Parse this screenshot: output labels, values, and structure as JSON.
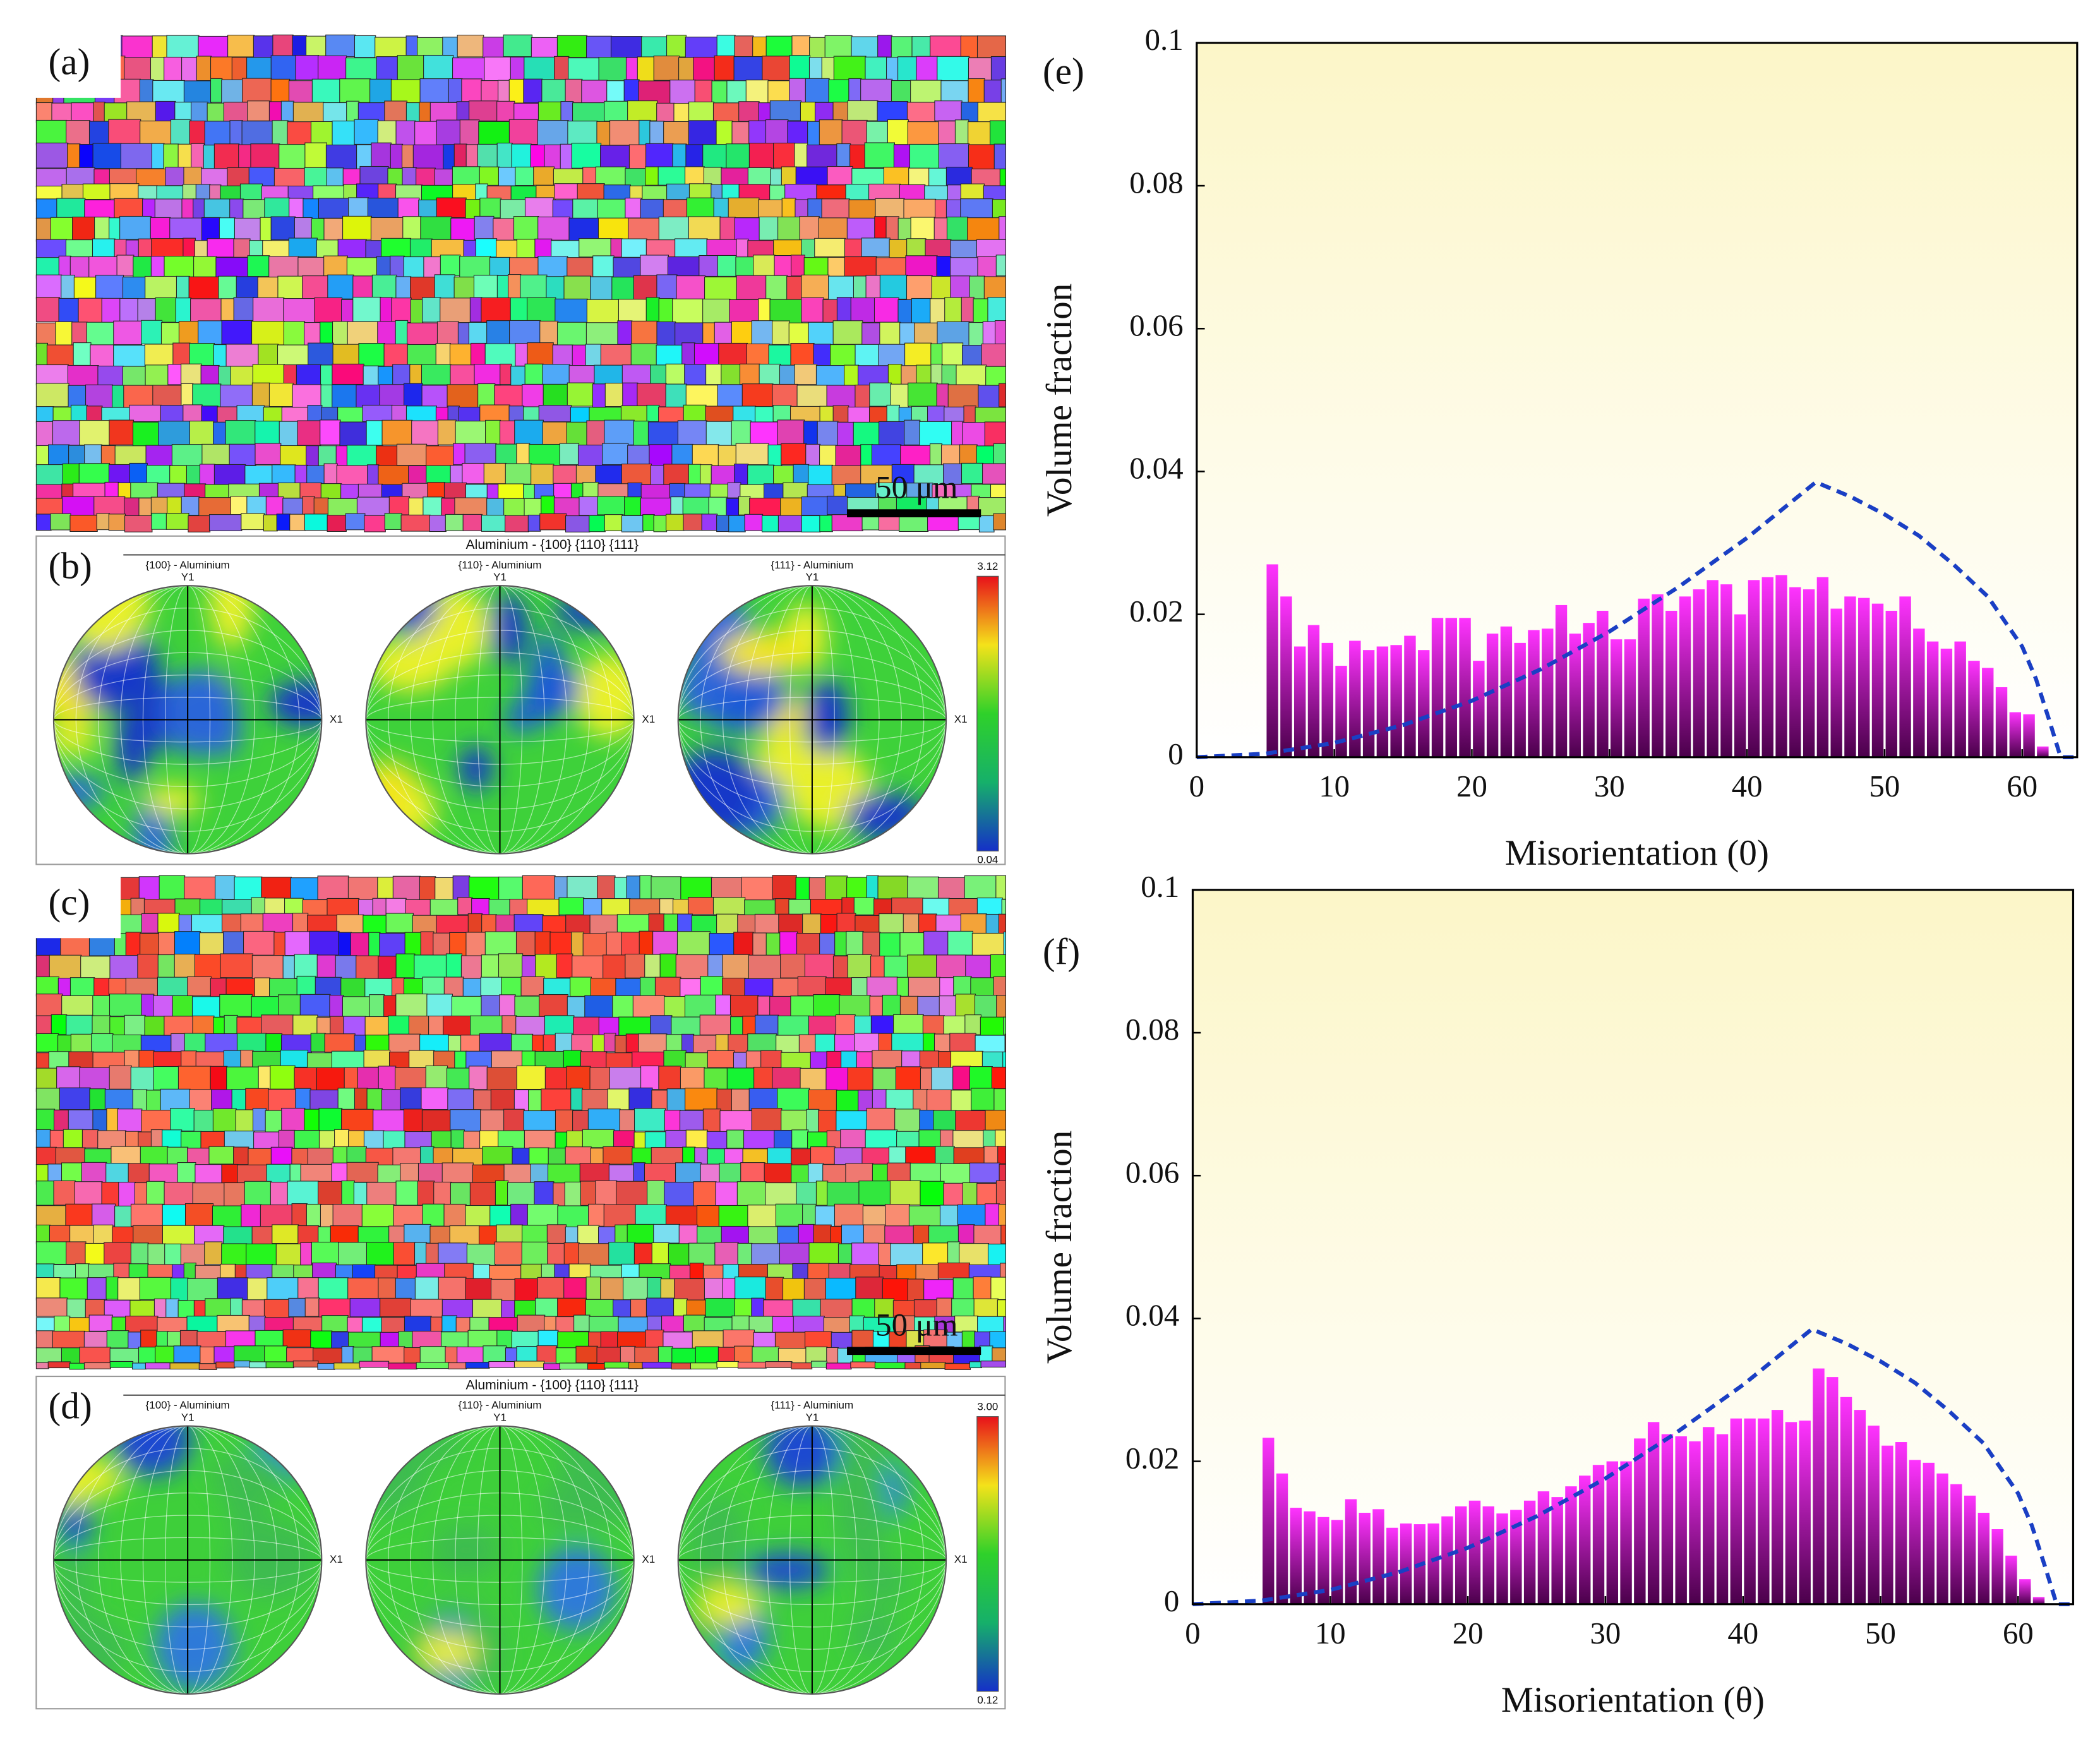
{
  "panels": {
    "a": {
      "label": "(a)",
      "scale_bar": "50 μm"
    },
    "b": {
      "label": "(b)",
      "title": "Aluminium - {100} {110} {111}",
      "figures": [
        "{100} - Aluminium",
        "{110} - Aluminium",
        "{111} - Aluminium"
      ],
      "y_axis": "Y1",
      "x_axis": "X1",
      "colorbar": [
        3.12,
        0.04
      ]
    },
    "c": {
      "label": "(c)",
      "scale_bar": "50 μm"
    },
    "d": {
      "label": "(d)",
      "title": "Aluminium - {100} {110} {111}",
      "figures": [
        "{100} - Aluminium",
        "{110} - Aluminium",
        "{111} - Aluminium"
      ],
      "y_axis": "Y1",
      "x_axis": "X1",
      "colorbar": [
        {
          "value": 3,
          "label": "3.00"
        },
        0.12
      ]
    }
  },
  "chart_data": [
    {
      "type": "histogram",
      "label": "(e)",
      "x_label": "Misorientation (0)",
      "y_label": "Volume fraction",
      "bins": [
        5,
        6,
        7,
        8,
        9,
        10,
        11,
        12,
        13,
        14,
        15,
        16,
        17,
        18,
        19,
        20,
        21,
        22,
        23,
        24,
        25,
        26,
        27,
        28,
        29,
        30,
        31,
        32,
        33,
        34,
        35,
        36,
        37,
        38,
        39,
        40,
        41,
        42,
        43,
        44,
        45,
        46,
        47,
        48,
        49,
        50,
        51,
        52,
        53,
        54,
        55,
        56,
        57,
        58,
        59,
        60,
        61,
        62
      ],
      "values": [
        0.027,
        0.0225,
        0.0155,
        0.0185,
        0.016,
        0.0128,
        0.0163,
        0.015,
        0.0155,
        0.0157,
        0.017,
        0.015,
        0.0195,
        0.0195,
        0.0195,
        0.0135,
        0.0173,
        0.0183,
        0.016,
        0.0178,
        0.018,
        0.0213,
        0.0173,
        0.0188,
        0.0205,
        0.0165,
        0.0165,
        0.0222,
        0.0228,
        0.0205,
        0.0225,
        0.0235,
        0.0248,
        0.0242,
        0.02,
        0.0248,
        0.0252,
        0.0255,
        0.0238,
        0.0235,
        0.0252,
        0.0208,
        0.0225,
        0.0223,
        0.0215,
        0.0205,
        0.0225,
        0.018,
        0.0162,
        0.0152,
        0.0162,
        0.0135,
        0.0125,
        0.0098,
        0.0063,
        0.006,
        0.0015
      ],
      "color": "#ff33ff",
      "curve": {
        "x": [
          0,
          5,
          10,
          15,
          20,
          25,
          30,
          35,
          40,
          45,
          47.5,
          50,
          52.5,
          55,
          57.5,
          60,
          61,
          62,
          62.8,
          64
        ],
        "values": [
          0,
          0.0005,
          0.002,
          0.0045,
          0.0079,
          0.0123,
          0.0176,
          0.0238,
          0.0307,
          0.0385,
          0.0365,
          0.034,
          0.031,
          0.027,
          0.0225,
          0.0155,
          0.011,
          0.005,
          0,
          0
        ],
        "color": "#1a3fc4"
      },
      "xlim": [
        0,
        64
      ],
      "xticks": [
        0,
        10,
        20,
        30,
        40,
        50,
        60
      ],
      "ylim": [
        0,
        0.1
      ],
      "yticks": [
        0,
        0.02,
        0.04,
        0.06,
        0.08,
        0.1
      ]
    },
    {
      "type": "histogram",
      "label": "(f)",
      "x_label": "Misorientation (θ)",
      "y_label": "Volume fraction",
      "bins": [
        5,
        6,
        7,
        8,
        9,
        10,
        11,
        12,
        13,
        14,
        15,
        16,
        17,
        18,
        19,
        20,
        21,
        22,
        23,
        24,
        25,
        26,
        27,
        28,
        29,
        30,
        31,
        32,
        33,
        34,
        35,
        36,
        37,
        38,
        39,
        40,
        41,
        42,
        43,
        44,
        45,
        46,
        47,
        48,
        49,
        50,
        51,
        52,
        53,
        54,
        55,
        56,
        57,
        58,
        59,
        60,
        61,
        62
      ],
      "values": [
        0.0233,
        0.0183,
        0.0135,
        0.013,
        0.0122,
        0.0118,
        0.0147,
        0.0128,
        0.0133,
        0.0107,
        0.0113,
        0.0112,
        0.0113,
        0.0123,
        0.0137,
        0.0145,
        0.0137,
        0.0127,
        0.0132,
        0.0145,
        0.0158,
        0.015,
        0.0165,
        0.018,
        0.0195,
        0.02,
        0.02,
        0.0232,
        0.0255,
        0.0238,
        0.0235,
        0.0228,
        0.0248,
        0.0238,
        0.026,
        0.026,
        0.026,
        0.0272,
        0.0255,
        0.0257,
        0.033,
        0.0318,
        0.029,
        0.0272,
        0.025,
        0.0222,
        0.0227,
        0.0202,
        0.0198,
        0.0183,
        0.0168,
        0.0152,
        0.0128,
        0.0105,
        0.0068,
        0.0035,
        0.001
      ],
      "color": "#ff33ff",
      "curve": {
        "x": [
          0,
          5,
          10,
          15,
          20,
          25,
          30,
          35,
          40,
          45,
          47.5,
          50,
          52.5,
          55,
          57.5,
          60,
          61,
          62,
          62.8,
          64
        ],
        "values": [
          0,
          0.0005,
          0.002,
          0.0045,
          0.0079,
          0.0123,
          0.0176,
          0.0238,
          0.0307,
          0.0385,
          0.0365,
          0.034,
          0.031,
          0.027,
          0.0225,
          0.0155,
          0.011,
          0.005,
          0,
          0
        ],
        "color": "#1a3fc4"
      },
      "xlim": [
        0,
        64
      ],
      "xticks": [
        0,
        10,
        20,
        30,
        40,
        50,
        60
      ],
      "ylim": [
        0,
        0.1
      ],
      "yticks": [
        0,
        0.02,
        0.04,
        0.06,
        0.08,
        0.1
      ]
    }
  ]
}
